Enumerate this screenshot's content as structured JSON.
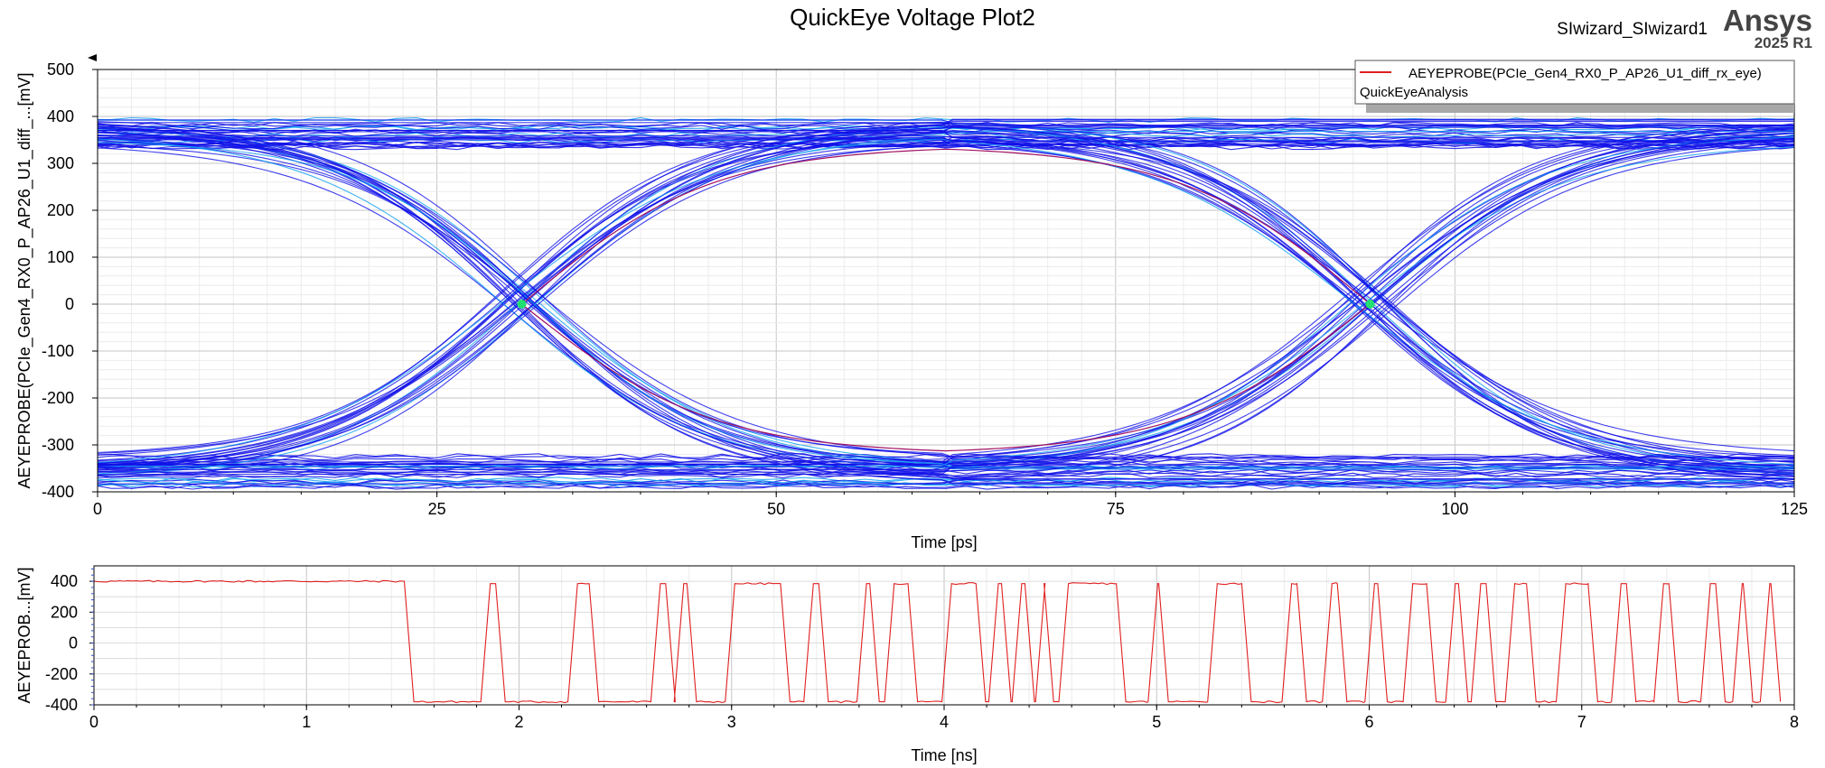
{
  "title": "QuickEye Voltage Plot2",
  "design_name": "SIwizard_SIwizard1",
  "brand": {
    "name": "Ansys",
    "version": "2025 R1"
  },
  "colors": {
    "eye_trace": "#1010e8",
    "eye_density_mid": "#10a0f0",
    "eye_density_high": "#20e070",
    "waveform": "#e02020",
    "grid": "#d4d4d4",
    "legend_shadow": "#a8a8a8"
  },
  "legend": {
    "entry": "AEYEPROBE(PCIe_Gen4_RX0_P_AP26_U1_diff_rx_eye)",
    "subtitle": "QuickEyeAnalysis",
    "position": "top-right"
  },
  "chart_data": [
    {
      "type": "line",
      "subtype": "eye-diagram",
      "xlabel": "Time [ps]",
      "ylabel": "AEYEPROBE(PCIe_Gen4_RX0_P_AP26_U1_diff_...[mV]",
      "xlim": [
        0,
        125
      ],
      "ylim": [
        -400,
        500
      ],
      "xticks": [
        0,
        25,
        50,
        75,
        100,
        125
      ],
      "yticks": [
        500,
        400,
        300,
        200,
        100,
        0,
        -100,
        -200,
        -300,
        -400
      ],
      "grid": true,
      "unit_interval_ps": 62.5,
      "crossings_ps": [
        31.25,
        93.75
      ],
      "crossing_level_mV": 0,
      "rail_high_mV": [
        330,
        400
      ],
      "rail_low_mV": [
        -395,
        -320
      ],
      "inner_eye_top_mV": 338,
      "inner_eye_bottom_mV": -320
    },
    {
      "type": "line",
      "xlabel": "Time [ns]",
      "ylabel": "AEYEPROB...[mV]",
      "xlim": [
        0,
        8
      ],
      "ylim": [
        -400,
        500
      ],
      "xticks": [
        0,
        1,
        2,
        3,
        4,
        5,
        6,
        7,
        8
      ],
      "yticks": [
        400,
        200,
        0,
        -200,
        -400
      ],
      "grid": true,
      "series": [
        {
          "name": "AEYEPROBE(PCIe_Gen4_RX0_P_AP26_U1_diff_rx_eye)",
          "high_mV": 385,
          "low_mV": -380,
          "initial_level_mV": 400,
          "transitions_ns": [
            1.47,
            1.83,
            1.9,
            2.24,
            2.34,
            2.63,
            2.7,
            2.74,
            2.8,
            2.98,
            3.24,
            3.35,
            3.42,
            3.6,
            3.66,
            3.73,
            3.84,
            4.0,
            4.16,
            4.22,
            4.28,
            4.33,
            4.39,
            4.44,
            4.48,
            4.55,
            4.82,
            4.97,
            5.02,
            5.25,
            5.41,
            5.6,
            5.67,
            5.79,
            5.86,
            5.99,
            6.05,
            6.17,
            6.28,
            6.37,
            6.43,
            6.49,
            6.56,
            6.65,
            6.75,
            6.89,
            7.04,
            7.15,
            7.22,
            7.35,
            7.42,
            7.57,
            7.64,
            7.72,
            7.77,
            7.85,
            7.9
          ]
        }
      ]
    }
  ]
}
